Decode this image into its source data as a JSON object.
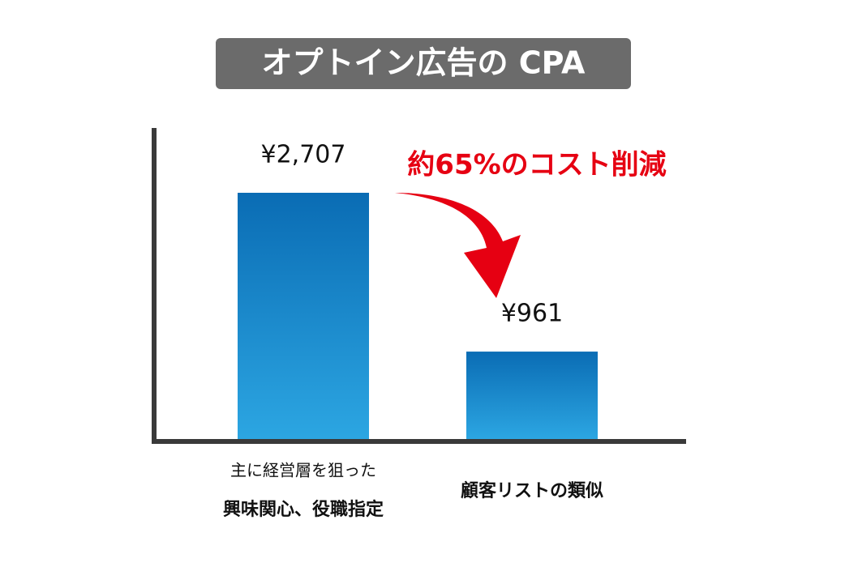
{
  "chart_data": {
    "type": "bar",
    "title": "オプトイン広告の CPA",
    "categories": [
      [
        "主に経営層を狙った",
        "興味関心、役職指定"
      ],
      [
        "顧客リストの類似"
      ]
    ],
    "values": [
      2707,
      961
    ],
    "value_labels": [
      "¥2,707",
      "¥961"
    ],
    "gradient": [
      "#0a6cb4",
      "#2ca6e2"
    ],
    "annotation": "約65%のコスト削減",
    "annotation_color": "#e60012"
  }
}
